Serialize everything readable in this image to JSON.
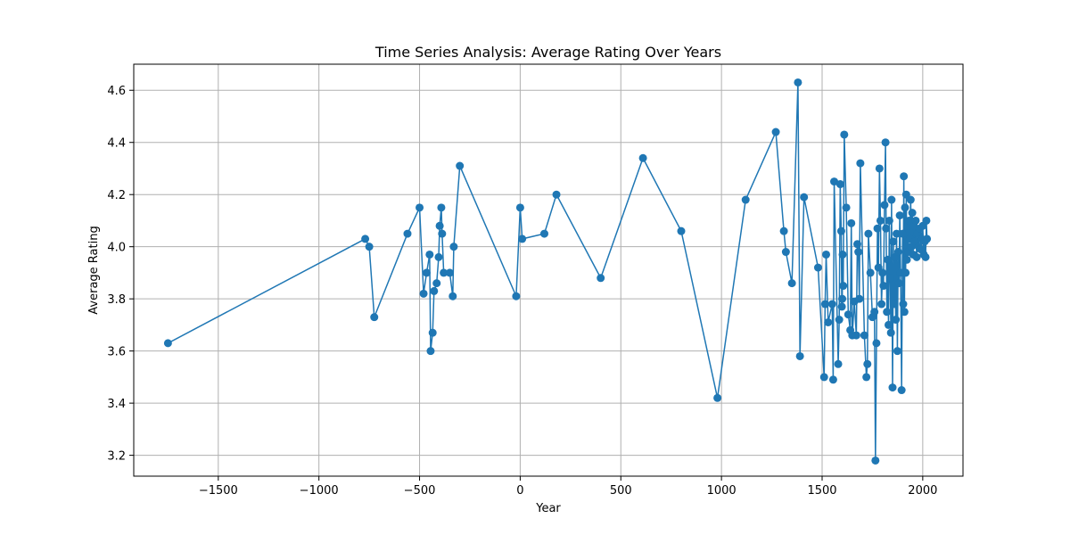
{
  "chart_data": {
    "type": "line",
    "title": "Time Series Analysis: Average Rating Over Years",
    "xlabel": "Year",
    "ylabel": "Average Rating",
    "xlim": [
      -1920,
      2200
    ],
    "ylim": [
      3.12,
      4.7
    ],
    "x_ticks": [
      -1500,
      -1000,
      -500,
      0,
      500,
      1000,
      1500,
      2000
    ],
    "x_tick_labels": [
      "−1500",
      "−1000",
      "−500",
      "0",
      "500",
      "1000",
      "1500",
      "2000"
    ],
    "y_ticks": [
      3.2,
      3.4,
      3.6,
      3.8,
      4.0,
      4.2,
      4.4,
      4.6
    ],
    "y_tick_labels": [
      "3.2",
      "3.4",
      "3.6",
      "3.8",
      "4.0",
      "4.2",
      "4.4",
      "4.6"
    ],
    "grid": true,
    "colors": {
      "series": "#1f77b4",
      "grid": "#b0b0b0",
      "axes": "#000000"
    },
    "series": [
      {
        "marker": "circle",
        "points": [
          [
            -1750,
            3.63
          ],
          [
            -770,
            4.03
          ],
          [
            -750,
            4.0
          ],
          [
            -725,
            3.73
          ],
          [
            -560,
            4.05
          ],
          [
            -500,
            4.15
          ],
          [
            -480,
            3.82
          ],
          [
            -465,
            3.9
          ],
          [
            -450,
            3.97
          ],
          [
            -445,
            3.6
          ],
          [
            -435,
            3.67
          ],
          [
            -428,
            3.83
          ],
          [
            -415,
            3.86
          ],
          [
            -405,
            3.96
          ],
          [
            -400,
            4.08
          ],
          [
            -392,
            4.15
          ],
          [
            -388,
            4.05
          ],
          [
            -380,
            3.9
          ],
          [
            -350,
            3.9
          ],
          [
            -335,
            3.81
          ],
          [
            -330,
            4.0
          ],
          [
            -300,
            4.31
          ],
          [
            -20,
            3.81
          ],
          [
            0,
            4.15
          ],
          [
            10,
            4.03
          ],
          [
            120,
            4.05
          ],
          [
            180,
            4.2
          ],
          [
            400,
            3.88
          ],
          [
            610,
            4.34
          ],
          [
            800,
            4.06
          ],
          [
            980,
            3.42
          ],
          [
            1120,
            4.18
          ],
          [
            1270,
            4.44
          ],
          [
            1310,
            4.06
          ],
          [
            1320,
            3.98
          ],
          [
            1350,
            3.86
          ],
          [
            1380,
            4.63
          ],
          [
            1390,
            3.58
          ],
          [
            1410,
            4.19
          ],
          [
            1480,
            3.92
          ],
          [
            1510,
            3.5
          ],
          [
            1515,
            3.78
          ],
          [
            1520,
            3.97
          ],
          [
            1530,
            3.71
          ],
          [
            1550,
            3.78
          ],
          [
            1555,
            3.49
          ],
          [
            1560,
            4.25
          ],
          [
            1580,
            3.55
          ],
          [
            1585,
            3.72
          ],
          [
            1590,
            4.24
          ],
          [
            1595,
            4.06
          ],
          [
            1598,
            3.77
          ],
          [
            1600,
            3.8
          ],
          [
            1602,
            3.97
          ],
          [
            1605,
            3.85
          ],
          [
            1610,
            4.43
          ],
          [
            1620,
            4.15
          ],
          [
            1630,
            3.74
          ],
          [
            1640,
            3.68
          ],
          [
            1645,
            4.09
          ],
          [
            1650,
            3.66
          ],
          [
            1660,
            3.79
          ],
          [
            1670,
            3.66
          ],
          [
            1675,
            4.01
          ],
          [
            1680,
            3.98
          ],
          [
            1685,
            3.8
          ],
          [
            1690,
            4.32
          ],
          [
            1710,
            3.66
          ],
          [
            1720,
            3.5
          ],
          [
            1725,
            3.55
          ],
          [
            1730,
            4.05
          ],
          [
            1740,
            3.9
          ],
          [
            1750,
            3.73
          ],
          [
            1760,
            3.75
          ],
          [
            1765,
            3.18
          ],
          [
            1770,
            3.63
          ],
          [
            1775,
            4.07
          ],
          [
            1780,
            3.92
          ],
          [
            1785,
            4.3
          ],
          [
            1790,
            4.1
          ],
          [
            1795,
            3.78
          ],
          [
            1800,
            3.9
          ],
          [
            1805,
            3.85
          ],
          [
            1810,
            4.16
          ],
          [
            1815,
            4.4
          ],
          [
            1818,
            4.07
          ],
          [
            1822,
            3.75
          ],
          [
            1826,
            3.95
          ],
          [
            1830,
            3.7
          ],
          [
            1834,
            4.1
          ],
          [
            1838,
            3.88
          ],
          [
            1842,
            3.67
          ],
          [
            1845,
            4.18
          ],
          [
            1850,
            3.46
          ],
          [
            1854,
            4.02
          ],
          [
            1858,
            3.78
          ],
          [
            1862,
            3.96
          ],
          [
            1866,
            3.72
          ],
          [
            1870,
            4.05
          ],
          [
            1874,
            3.6
          ],
          [
            1878,
            3.98
          ],
          [
            1882,
            3.86
          ],
          [
            1886,
            4.12
          ],
          [
            1890,
            3.9
          ],
          [
            1895,
            3.45
          ],
          [
            1900,
            4.05
          ],
          [
            1903,
            3.78
          ],
          [
            1906,
            4.27
          ],
          [
            1909,
            3.75
          ],
          [
            1912,
            4.15
          ],
          [
            1915,
            3.9
          ],
          [
            1918,
            4.2
          ],
          [
            1921,
            3.95
          ],
          [
            1925,
            4.08
          ],
          [
            1928,
            3.98
          ],
          [
            1932,
            4.1
          ],
          [
            1936,
            4.03
          ],
          [
            1940,
            4.18
          ],
          [
            1944,
            4.0
          ],
          [
            1948,
            4.13
          ],
          [
            1952,
            3.97
          ],
          [
            1956,
            4.08
          ],
          [
            1960,
            4.02
          ],
          [
            1965,
            4.1
          ],
          [
            1970,
            3.96
          ],
          [
            1975,
            4.05
          ],
          [
            1980,
            4.0
          ],
          [
            1985,
            4.07
          ],
          [
            1990,
            3.99
          ],
          [
            1995,
            4.03
          ],
          [
            2000,
            4.08
          ],
          [
            2005,
            3.97
          ],
          [
            2010,
            4.02
          ],
          [
            2014,
            3.96
          ],
          [
            2018,
            4.1
          ],
          [
            2021,
            4.03
          ]
        ]
      }
    ]
  }
}
